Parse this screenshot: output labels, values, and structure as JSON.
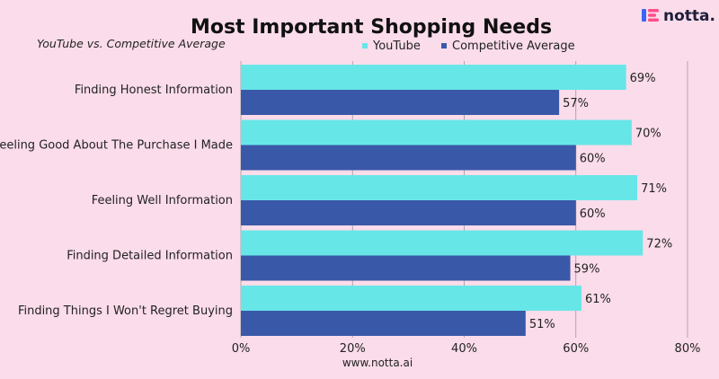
{
  "brand": {
    "name": "notta.",
    "colors": [
      "#3b66f5",
      "#ff4f8b"
    ]
  },
  "source": "www.notta.ai",
  "chart_data": {
    "type": "bar",
    "orientation": "horizontal",
    "title": "Most Important Shopping Needs",
    "subtitle": "YouTube vs. Competitive Average",
    "categories": [
      "Finding Honest Information",
      "Feeling Good About The Purchase I Made",
      "Feeling Well Information",
      "Finding Detailed Information",
      "Finding Things I Won't Regret Buying"
    ],
    "series": [
      {
        "name": "YouTube",
        "color": "#67e6e8",
        "values": [
          69,
          70,
          71,
          72,
          61
        ]
      },
      {
        "name": "Competitive Average",
        "color": "#3a58a8",
        "values": [
          57,
          60,
          60,
          59,
          51
        ]
      }
    ],
    "value_suffix": "%",
    "xlim": [
      0,
      80
    ],
    "xticks": [
      0,
      20,
      40,
      60,
      80
    ],
    "xtick_labels": [
      "0%",
      "20%",
      "40%",
      "60%",
      "80%"
    ],
    "grid": true,
    "legend_position": "top"
  }
}
